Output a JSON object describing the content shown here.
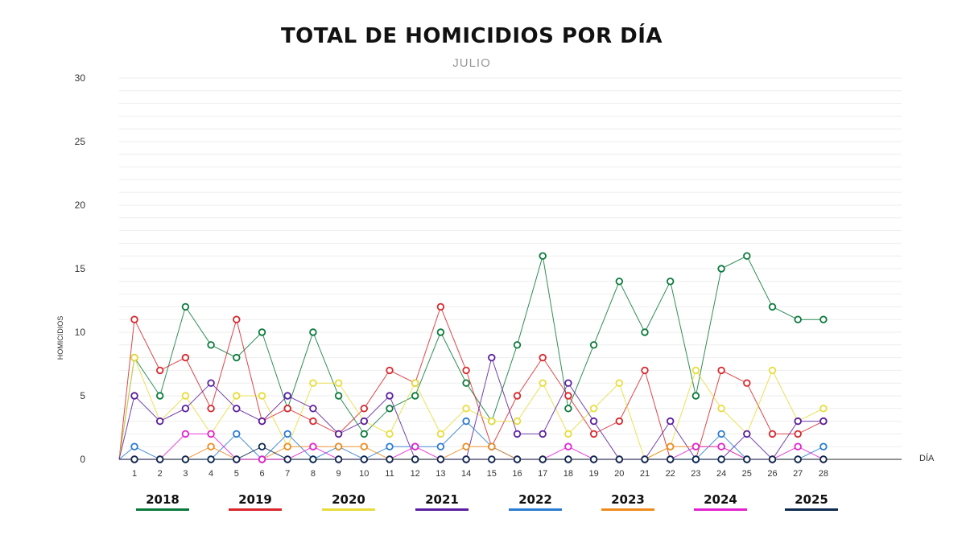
{
  "header": {
    "title": "TOTAL DE HOMICIDIOS POR DÍA",
    "subtitle": "JULIO"
  },
  "chart_data": {
    "type": "line",
    "title": "TOTAL DE HOMICIDIOS POR DÍA",
    "subtitle": "JULIO",
    "xlabel": "DÍA",
    "ylabel": "HOMICIDIOS",
    "ylim": [
      0,
      30
    ],
    "yticks": [
      0,
      5,
      10,
      15,
      20,
      25,
      30
    ],
    "grid": true,
    "legend_position": "bottom",
    "x": [
      1,
      2,
      3,
      4,
      5,
      6,
      7,
      8,
      9,
      10,
      11,
      12,
      13,
      14,
      15,
      16,
      17,
      18,
      19,
      20,
      21,
      22,
      23,
      24,
      25,
      26,
      27,
      28
    ],
    "series": [
      {
        "name": "2018",
        "color": "#0a7a3a",
        "values": [
          8,
          5,
          12,
          9,
          8,
          10,
          4,
          10,
          5,
          2,
          4,
          5,
          10,
          6,
          3,
          9,
          16,
          4,
          9,
          14,
          10,
          14,
          5,
          15,
          16,
          12,
          11,
          11
        ]
      },
      {
        "name": "2019",
        "color": "#d8262b",
        "values": [
          11,
          7,
          8,
          4,
          11,
          3,
          4,
          3,
          2,
          4,
          7,
          6,
          12,
          7,
          1,
          5,
          8,
          5,
          2,
          3,
          7,
          0,
          0,
          7,
          6,
          2,
          2,
          3
        ]
      },
      {
        "name": "2020",
        "color": "#e8dc3a",
        "values": [
          8,
          3,
          5,
          2,
          5,
          5,
          1,
          6,
          6,
          3,
          2,
          6,
          2,
          4,
          3,
          3,
          6,
          2,
          4,
          6,
          0,
          1,
          7,
          4,
          2,
          7,
          3,
          4
        ]
      },
      {
        "name": "2021",
        "color": "#5a1fa0",
        "values": [
          5,
          3,
          4,
          6,
          4,
          3,
          5,
          4,
          2,
          3,
          5,
          0,
          0,
          0,
          8,
          2,
          2,
          6,
          3,
          0,
          0,
          3,
          0,
          0,
          2,
          0,
          3,
          3
        ]
      },
      {
        "name": "2022",
        "color": "#2a7bd4",
        "values": [
          1,
          0,
          0,
          0,
          2,
          0,
          2,
          0,
          1,
          0,
          1,
          1,
          1,
          3,
          1,
          0,
          0,
          0,
          0,
          0,
          0,
          0,
          0,
          2,
          0,
          0,
          0,
          1
        ]
      },
      {
        "name": "2023",
        "color": "#ef8a1d",
        "values": [
          0,
          0,
          0,
          1,
          0,
          0,
          1,
          1,
          1,
          1,
          0,
          0,
          0,
          1,
          1,
          0,
          0,
          0,
          0,
          0,
          0,
          1,
          1,
          1,
          0,
          0,
          0,
          0
        ]
      },
      {
        "name": "2024",
        "color": "#e322d2",
        "values": [
          0,
          0,
          2,
          2,
          0,
          0,
          0,
          1,
          0,
          0,
          0,
          1,
          0,
          0,
          0,
          0,
          0,
          1,
          0,
          0,
          0,
          0,
          1,
          1,
          0,
          0,
          1,
          0
        ]
      },
      {
        "name": "2025",
        "color": "#0d2a50",
        "values": [
          0,
          0,
          0,
          0,
          0,
          1,
          0,
          0,
          0,
          0,
          0,
          0,
          0,
          0,
          0,
          0,
          0,
          0,
          0,
          0,
          0,
          0,
          0,
          0,
          0,
          0,
          0,
          0
        ]
      }
    ]
  }
}
